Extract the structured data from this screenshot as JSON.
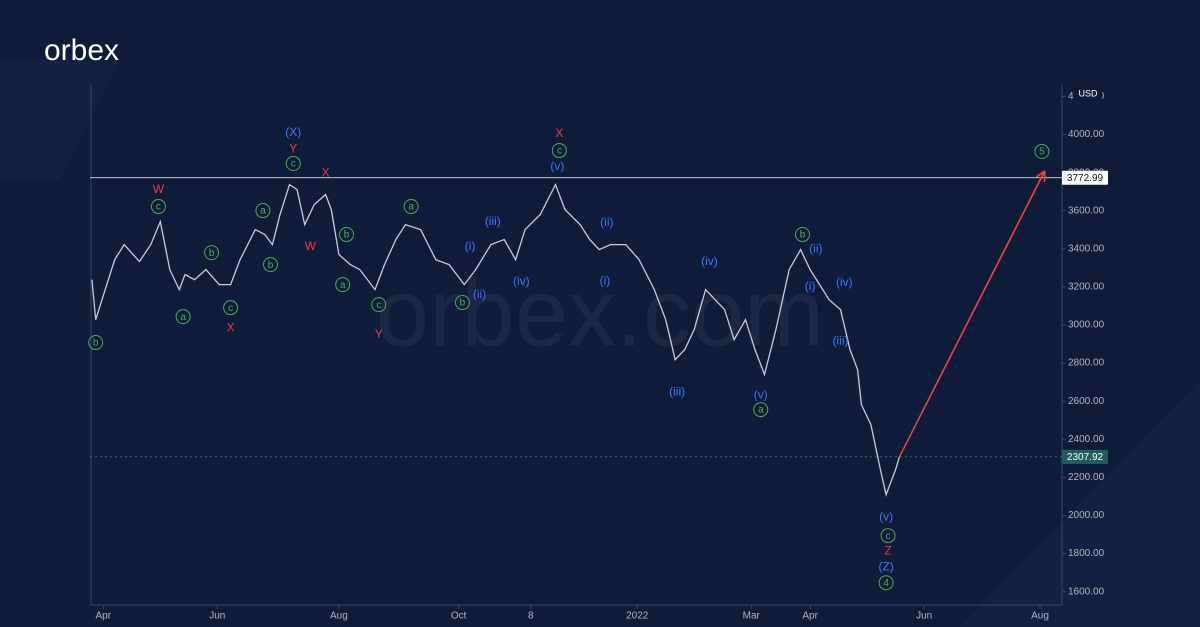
{
  "brand": {
    "logo": "orbex",
    "watermark": "orbex.com"
  },
  "chart_data": {
    "type": "line",
    "color": "#c8ccd6",
    "y_unit": "USD",
    "x": [
      1,
      3,
      8,
      13,
      18,
      26,
      32,
      37,
      42,
      47,
      50,
      55,
      61,
      68,
      74,
      79,
      87,
      92,
      96,
      100,
      105,
      109,
      113,
      118,
      124,
      127,
      131,
      137,
      142,
      150,
      155,
      161,
      166,
      174,
      182,
      189,
      197,
      203,
      211,
      218,
      224,
      229,
      237,
      245,
      250,
      258,
      263,
      268,
      274,
      282,
      289,
      297,
      303,
      308,
      313,
      318,
      324,
      329,
      334,
      339,
      345,
      350,
      355,
      361,
      368,
      374,
      379,
      384,
      389,
      395,
      400,
      404,
      406,
      411,
      416,
      419,
      424,
      426
    ],
    "values": [
      3238,
      3028,
      3186,
      3343,
      3422,
      3333,
      3422,
      3543,
      3291,
      3186,
      3265,
      3238,
      3291,
      3212,
      3212,
      3343,
      3501,
      3475,
      3422,
      3580,
      3737,
      3711,
      3527,
      3632,
      3685,
      3606,
      3370,
      3317,
      3291,
      3186,
      3317,
      3449,
      3527,
      3501,
      3343,
      3317,
      3212,
      3291,
      3422,
      3449,
      3343,
      3501,
      3580,
      3737,
      3606,
      3527,
      3449,
      3396,
      3422,
      3422,
      3343,
      3186,
      3028,
      2818,
      2871,
      2976,
      3186,
      3133,
      3081,
      2923,
      3028,
      2871,
      2740,
      2976,
      3291,
      3396,
      3291,
      3212,
      3133,
      3081,
      2871,
      2766,
      2582,
      2477,
      2241,
      2109,
      2241,
      2308
    ],
    "xlim": [
      0,
      510.5
    ],
    "xticks": [
      {
        "value": 7,
        "label": "Apr"
      },
      {
        "value": 67,
        "label": "Jun"
      },
      {
        "value": 131,
        "label": "Aug"
      },
      {
        "value": 194,
        "label": "Oct"
      },
      {
        "value": 232,
        "label": "8"
      },
      {
        "value": 288,
        "label": "2022"
      },
      {
        "value": 348,
        "label": "Mar"
      },
      {
        "value": 379,
        "label": "Apr"
      },
      {
        "value": 439,
        "label": "Jun"
      },
      {
        "value": 500,
        "label": "Aug"
      }
    ],
    "ylim": [
      1530,
      4260
    ],
    "yticks": [
      {
        "value": 1600,
        "label": "1600.00"
      },
      {
        "value": 1800,
        "label": "1800.00"
      },
      {
        "value": 2000,
        "label": "2000.00"
      },
      {
        "value": 2200,
        "label": "2200.00"
      },
      {
        "value": 2400,
        "label": "2400.00"
      },
      {
        "value": 2600,
        "label": "2600.00"
      },
      {
        "value": 2800,
        "label": "2800.00"
      },
      {
        "value": 3000,
        "label": "3000.00"
      },
      {
        "value": 3200,
        "label": "3200.00"
      },
      {
        "value": 3400,
        "label": "3400.00"
      },
      {
        "value": 3600,
        "label": "3600.00"
      },
      {
        "value": 3800,
        "label": "3800.00"
      },
      {
        "value": 4000,
        "label": "4000.00"
      },
      {
        "value": 4200,
        "label": "4200.00"
      }
    ],
    "levels": [
      {
        "value": 3772.99,
        "color": "#ffffff",
        "box": "#ffffff",
        "text_color": "#131722",
        "dashed": false
      },
      {
        "value": 2307.92,
        "color": "#2a7f7a",
        "box": "#1f5e5c",
        "text_color": "#ffffff",
        "dashed": true
      }
    ],
    "projection": {
      "x": [
        426,
        502
      ],
      "y": [
        2308,
        3800
      ],
      "color": "#f0453a"
    },
    "colors": {
      "blue": "#3a78ff",
      "red": "#f23645",
      "green": "#4caf50"
    },
    "annotations": [
      {
        "text": "(X)",
        "x": 107,
        "y": 4011,
        "style": "blue"
      },
      {
        "text": "Y",
        "x": 107,
        "y": 3926,
        "style": "red"
      },
      {
        "text": "c",
        "x": 107,
        "y": 3848,
        "style": "green"
      },
      {
        "text": "W",
        "x": 36,
        "y": 3711,
        "style": "red"
      },
      {
        "text": "c",
        "x": 36,
        "y": 3622,
        "style": "green"
      },
      {
        "text": "X",
        "x": 124,
        "y": 3800,
        "style": "red"
      },
      {
        "text": "W",
        "x": 116,
        "y": 3412,
        "style": "red"
      },
      {
        "text": "a",
        "x": 91,
        "y": 3601,
        "style": "green"
      },
      {
        "text": "b",
        "x": 95,
        "y": 3317,
        "style": "green"
      },
      {
        "text": "b",
        "x": 3,
        "y": 2908,
        "style": "green"
      },
      {
        "text": "b",
        "x": 64,
        "y": 3380,
        "style": "green"
      },
      {
        "text": "a",
        "x": 49,
        "y": 3044,
        "style": "green"
      },
      {
        "text": "c",
        "x": 74,
        "y": 3091,
        "style": "green"
      },
      {
        "text": "X",
        "x": 74,
        "y": 2986,
        "style": "red"
      },
      {
        "text": "b",
        "x": 135,
        "y": 3475,
        "style": "green"
      },
      {
        "text": "a",
        "x": 133,
        "y": 3212,
        "style": "green"
      },
      {
        "text": "c",
        "x": 152,
        "y": 3107,
        "style": "green"
      },
      {
        "text": "Y",
        "x": 152,
        "y": 2950,
        "style": "red"
      },
      {
        "text": "a",
        "x": 169,
        "y": 3622,
        "style": "green"
      },
      {
        "text": "X",
        "x": 247,
        "y": 4005,
        "style": "red"
      },
      {
        "text": "c",
        "x": 247,
        "y": 3916,
        "style": "green"
      },
      {
        "text": "(v)",
        "x": 246,
        "y": 3832,
        "style": "blue"
      },
      {
        "text": "(i)",
        "x": 200,
        "y": 3412,
        "style": "blue"
      },
      {
        "text": "(iii)",
        "x": 212,
        "y": 3543,
        "style": "blue"
      },
      {
        "text": "(ii)",
        "x": 205,
        "y": 3160,
        "style": "blue"
      },
      {
        "text": "b",
        "x": 196,
        "y": 3118,
        "style": "green"
      },
      {
        "text": "(iv)",
        "x": 227,
        "y": 3228,
        "style": "blue"
      },
      {
        "text": "(ii)",
        "x": 272,
        "y": 3538,
        "style": "blue"
      },
      {
        "text": "(i)",
        "x": 271,
        "y": 3233,
        "style": "blue"
      },
      {
        "text": "(iv)",
        "x": 326,
        "y": 3333,
        "style": "blue"
      },
      {
        "text": "(iii)",
        "x": 309,
        "y": 2650,
        "style": "blue"
      },
      {
        "text": "(v)",
        "x": 353,
        "y": 2634,
        "style": "blue"
      },
      {
        "text": "a",
        "x": 353,
        "y": 2556,
        "style": "green"
      },
      {
        "text": "b",
        "x": 375,
        "y": 3475,
        "style": "green"
      },
      {
        "text": "(ii)",
        "x": 382,
        "y": 3401,
        "style": "blue"
      },
      {
        "text": "(i)",
        "x": 379,
        "y": 3202,
        "style": "blue"
      },
      {
        "text": "(iv)",
        "x": 397,
        "y": 3223,
        "style": "blue"
      },
      {
        "text": "(iii)",
        "x": 395,
        "y": 2918,
        "style": "blue"
      },
      {
        "text": "(v)",
        "x": 419,
        "y": 1994,
        "style": "blue"
      },
      {
        "text": "c",
        "x": 420,
        "y": 1894,
        "style": "green"
      },
      {
        "text": "Z",
        "x": 420,
        "y": 1815,
        "style": "red"
      },
      {
        "text": "(Z)",
        "x": 419,
        "y": 1731,
        "style": "blue"
      },
      {
        "text": "4",
        "x": 419,
        "y": 1647,
        "style": "green"
      },
      {
        "text": "5",
        "x": 501,
        "y": 3911,
        "style": "green"
      }
    ]
  }
}
